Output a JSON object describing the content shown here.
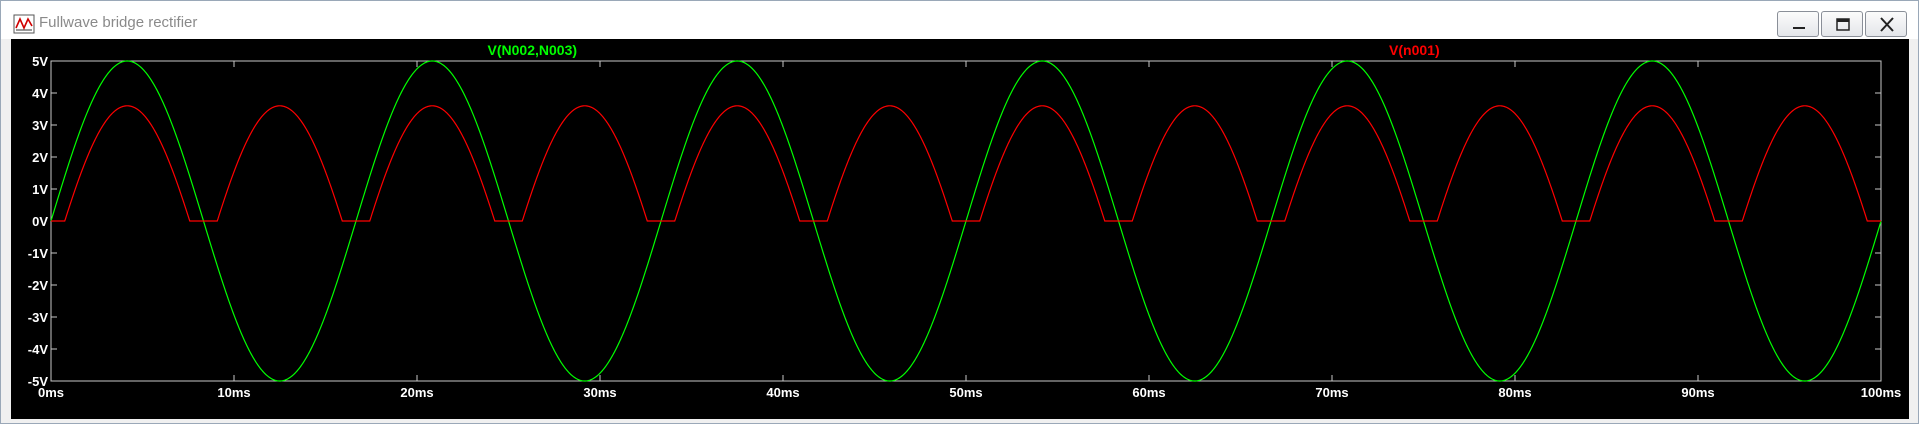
{
  "window": {
    "title": "Fullwave bridge rectifier",
    "icon": "waveform-plot-icon",
    "controls": [
      "minimize-icon",
      "maximize-icon",
      "close-icon"
    ]
  },
  "plot": {
    "background": "#000000",
    "axis_color": "#c8c8c8",
    "text_color": "#ffffff"
  },
  "chart_data": {
    "type": "line",
    "xlabel": "",
    "ylabel": "",
    "xlim": [
      0,
      100
    ],
    "ylim": [
      -5,
      5
    ],
    "x_unit": "ms",
    "y_unit": "V",
    "x_ticks": [
      "0ms",
      "10ms",
      "20ms",
      "30ms",
      "40ms",
      "50ms",
      "60ms",
      "70ms",
      "80ms",
      "90ms",
      "100ms"
    ],
    "y_ticks": [
      "5V",
      "4V",
      "3V",
      "2V",
      "1V",
      "0V",
      "-1V",
      "-2V",
      "-3V",
      "-4V",
      "-5V"
    ],
    "grid": false,
    "series": [
      {
        "name": "V(N002,N003)",
        "color": "#00ff00",
        "shape": "sine",
        "amplitude": 5,
        "period_ms": 16.667,
        "offset": 0
      },
      {
        "name": "V(n001)",
        "color": "#ff0000",
        "shape": "rectified sine",
        "peak": 3.6,
        "diode_drop": 1.4,
        "period_ms": 16.667
      }
    ]
  }
}
